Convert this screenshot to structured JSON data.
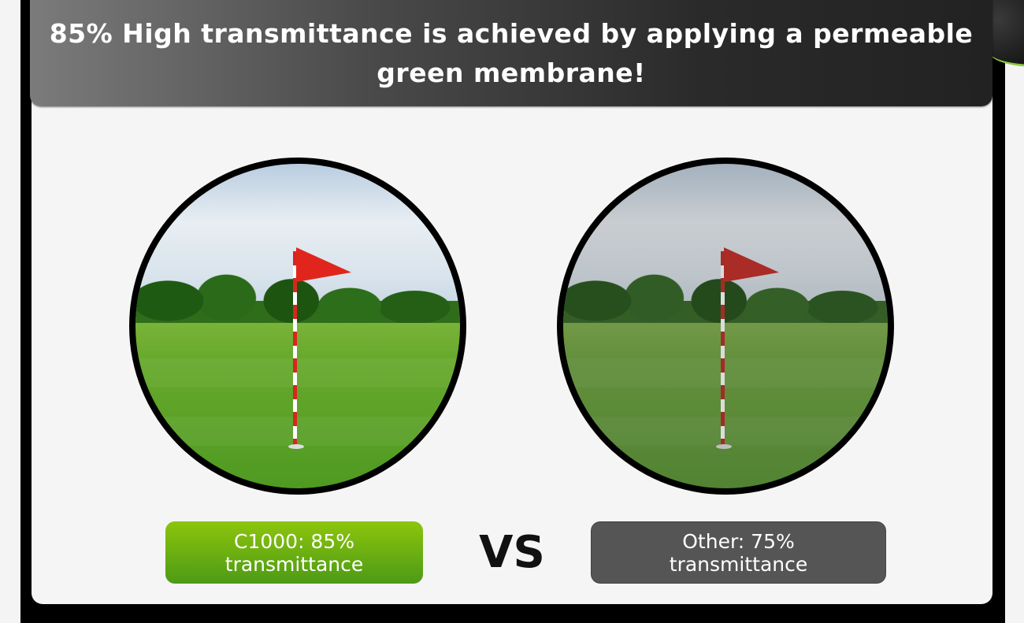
{
  "header": {
    "title": "85% High transmittance is achieved by applying a permeable green membrane!"
  },
  "comparison": {
    "left": {
      "line1": "C1000: 85%",
      "line2": "transmittance",
      "color": "#6aad12"
    },
    "vs": "VS",
    "right": {
      "line1": "Other: 75%",
      "line2": "transmittance",
      "color": "#555555"
    }
  }
}
